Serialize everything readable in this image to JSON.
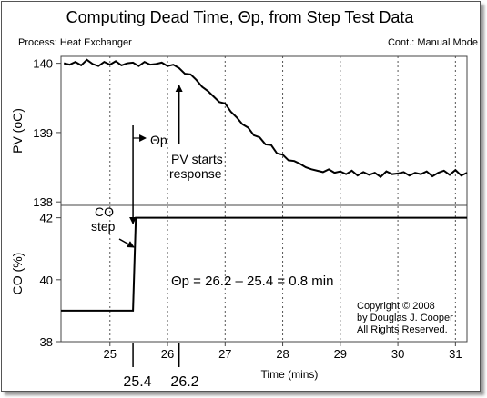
{
  "chart_data": {
    "type": "line",
    "title": "Computing Dead Time, Θp, from Step Test Data",
    "process_label": "Process: Heat Exchanger",
    "mode_label": "Cont.: Manual Mode",
    "xlabel": "Time (mins)",
    "xlim": [
      24.15,
      31.2
    ],
    "xticks": [
      "25",
      "26",
      "27",
      "28",
      "29",
      "30",
      "31"
    ],
    "grid": "vertical dashed",
    "top_panel": {
      "ylabel": "PV (oC)",
      "ylim": [
        137.95,
        140.1
      ],
      "yticks": [
        "140",
        "139",
        "138"
      ],
      "series": {
        "x": [
          24.2,
          24.3,
          24.4,
          24.5,
          24.6,
          24.7,
          24.8,
          24.9,
          25.0,
          25.1,
          25.2,
          25.3,
          25.4,
          25.5,
          25.6,
          25.7,
          25.8,
          25.9,
          26.0,
          26.1,
          26.2,
          26.3,
          26.4,
          26.5,
          26.6,
          26.7,
          26.8,
          26.9,
          27.0,
          27.1,
          27.2,
          27.3,
          27.4,
          27.5,
          27.6,
          27.7,
          27.8,
          27.9,
          28.0,
          28.1,
          28.2,
          28.3,
          28.4,
          28.5,
          28.6,
          28.7,
          28.8,
          28.9,
          29.0,
          29.1,
          29.2,
          29.3,
          29.4,
          29.5,
          29.6,
          29.7,
          29.8,
          29.9,
          30.0,
          30.1,
          30.2,
          30.3,
          30.4,
          30.5,
          30.6,
          30.7,
          30.8,
          30.9,
          31.0,
          31.1,
          31.2
        ],
        "y": [
          140.0,
          139.98,
          140.02,
          139.97,
          140.05,
          139.99,
          139.96,
          140.02,
          139.98,
          140.03,
          139.97,
          140.0,
          140.01,
          139.96,
          140.02,
          139.98,
          139.99,
          140.01,
          139.96,
          139.98,
          139.93,
          139.85,
          139.84,
          139.76,
          139.66,
          139.6,
          139.52,
          139.44,
          139.42,
          139.3,
          139.22,
          139.12,
          139.07,
          138.96,
          138.93,
          138.83,
          138.82,
          138.7,
          138.68,
          138.6,
          138.59,
          138.55,
          138.5,
          138.47,
          138.45,
          138.43,
          138.47,
          138.42,
          138.44,
          138.4,
          138.45,
          138.38,
          138.43,
          138.39,
          138.42,
          138.36,
          138.44,
          138.4,
          138.41,
          138.43,
          138.38,
          138.42,
          138.4,
          138.44,
          138.37,
          138.42,
          138.45,
          138.39,
          138.46,
          138.38,
          138.42
        ]
      }
    },
    "bottom_panel": {
      "ylabel": "CO (%)",
      "ylim": [
        38,
        42.4
      ],
      "yticks": [
        "42",
        "40",
        "38"
      ],
      "series": {
        "x": [
          24.15,
          25.4,
          25.45,
          31.2
        ],
        "y": [
          39.0,
          39.0,
          42.0,
          42.0
        ]
      }
    },
    "annotations": {
      "theta_label": "Θp",
      "pv_starts_line1": "PV starts",
      "pv_starts_line2": "response",
      "co_step_line1": "CO",
      "co_step_line2": "step",
      "equation": "Θp = 26.2 – 25.4 = 0.8 min",
      "marker_left": "25.4",
      "marker_right": "26.2",
      "co_step_time": 25.4,
      "pv_response_time": 26.2
    },
    "copyright": [
      "Copyright © 2008",
      "by Douglas J. Cooper",
      "All Rights Reserved."
    ]
  }
}
